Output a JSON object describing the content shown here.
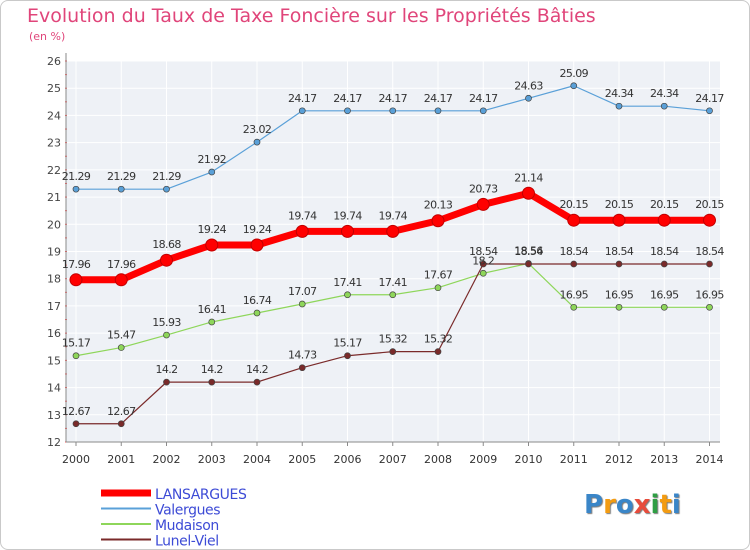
{
  "title": "Evolution du Taux de Taxe Foncière sur les Propriétés Bâties",
  "unit": "(en %)",
  "logo": {
    "letters": [
      "P",
      "r",
      "o",
      "x",
      "i",
      "t",
      "i"
    ],
    "colors": [
      "#3a86c8",
      "#f39c12",
      "#3a86c8",
      "#e74c3c",
      "#2f9e44",
      "#f39c12",
      "#3a86c8"
    ]
  },
  "chart_data": {
    "type": "line",
    "title": "Evolution du Taux de Taxe Foncière sur les Propriétés Bâties",
    "ylabel": "(en %)",
    "xlabel": "",
    "ylim": [
      12,
      26
    ],
    "yticks": [
      12,
      13,
      14,
      15,
      16,
      17,
      18,
      19,
      20,
      21,
      22,
      23,
      24,
      25,
      26
    ],
    "categories": [
      "2000",
      "2001",
      "2002",
      "2003",
      "2004",
      "2005",
      "2006",
      "2007",
      "2008",
      "2009",
      "2010",
      "2011",
      "2012",
      "2013",
      "2014"
    ],
    "series": [
      {
        "name": "LANSARGUES",
        "color": "#ff0000",
        "values": [
          17.96,
          17.96,
          18.68,
          19.24,
          19.24,
          19.74,
          19.74,
          19.74,
          20.13,
          20.73,
          21.14,
          20.15,
          20.15,
          20.15,
          20.15
        ],
        "labels": [
          "17.96",
          "17.96",
          "18.68",
          "19.24",
          "19.24",
          "19.74",
          "19.74",
          "19.74",
          "20.13",
          "20.73",
          "21.14",
          "20.15",
          "20.15",
          "20.15",
          "20.15"
        ]
      },
      {
        "name": "Valergues",
        "color": "#5aa0d8",
        "values": [
          21.29,
          21.29,
          21.29,
          21.92,
          23.02,
          24.17,
          24.17,
          24.17,
          24.17,
          24.17,
          24.63,
          25.09,
          24.34,
          24.34,
          24.17
        ],
        "labels": [
          "21.29",
          "21.29",
          "21.29",
          "21.92",
          "23.02",
          "24.17",
          "24.17",
          "24.17",
          "24.17",
          "24.17",
          "24.63",
          "25.09",
          "24.34",
          "24.34",
          "24.17"
        ]
      },
      {
        "name": "Mudaison",
        "color": "#8ed65a",
        "values": [
          15.17,
          15.47,
          15.93,
          16.41,
          16.74,
          17.07,
          17.41,
          17.41,
          17.67,
          18.2,
          18.56,
          16.95,
          16.95,
          16.95,
          16.95
        ],
        "labels": [
          "15.17",
          "15.47",
          "15.93",
          "16.41",
          "16.74",
          "17.07",
          "17.41",
          "17.41",
          "17.67",
          "18.2",
          "18.56",
          "16.95",
          "16.95",
          "16.95",
          "16.95"
        ]
      },
      {
        "name": "Lunel-Viel",
        "color": "#7a2a2a",
        "values": [
          12.67,
          12.67,
          14.2,
          14.2,
          14.2,
          14.73,
          15.17,
          15.32,
          15.32,
          18.54,
          18.54,
          18.54,
          18.54,
          18.54,
          18.54
        ],
        "labels": [
          "12.67",
          "12.67",
          "14.2",
          "14.2",
          "14.2",
          "14.73",
          "15.17",
          "15.32",
          "15.32",
          "18.54",
          "18.54",
          "18.54",
          "18.54",
          "18.54",
          "18.54"
        ]
      }
    ],
    "legend": {
      "position": "bottom-left",
      "entries": [
        "LANSARGUES",
        "Valergues",
        "Mudaison",
        "Lunel-Viel"
      ]
    },
    "grid": true
  }
}
